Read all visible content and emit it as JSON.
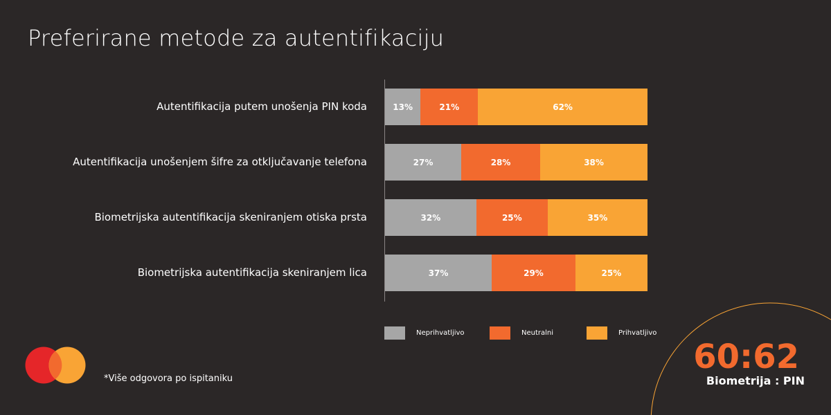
{
  "chart_data": {
    "type": "bar",
    "orientation": "horizontal-stacked",
    "title": "Preferirane metode za autentifikaciju",
    "categories": [
      "Autentifikacija putem unošenja PIN koda",
      "Autentifikacija unošenjem šifre za otključavanje telefona",
      "Biometrijska autentifikacija skeniranjem otiska prsta",
      "Biometrijska autentifikacija skeniranjem lica"
    ],
    "series": [
      {
        "name": "Neprihvatljivo",
        "color": "#a6a6a6",
        "values": [
          13,
          27,
          32,
          37
        ]
      },
      {
        "name": "Neutralni",
        "color": "#f26a2e",
        "values": [
          21,
          28,
          25,
          29
        ]
      },
      {
        "name": "Prihvatljivo",
        "color": "#f9a435",
        "values": [
          62,
          38,
          35,
          25
        ]
      }
    ],
    "unit": "%",
    "legend_position": "bottom",
    "grid": false
  },
  "footnote": "*Više odgovora po ispitaniku",
  "highlight": {
    "value": "60:62",
    "caption": "Biometrija : PIN"
  },
  "logo": {
    "colors": [
      "#e52629",
      "#f9a435",
      "#f26a2e"
    ]
  }
}
